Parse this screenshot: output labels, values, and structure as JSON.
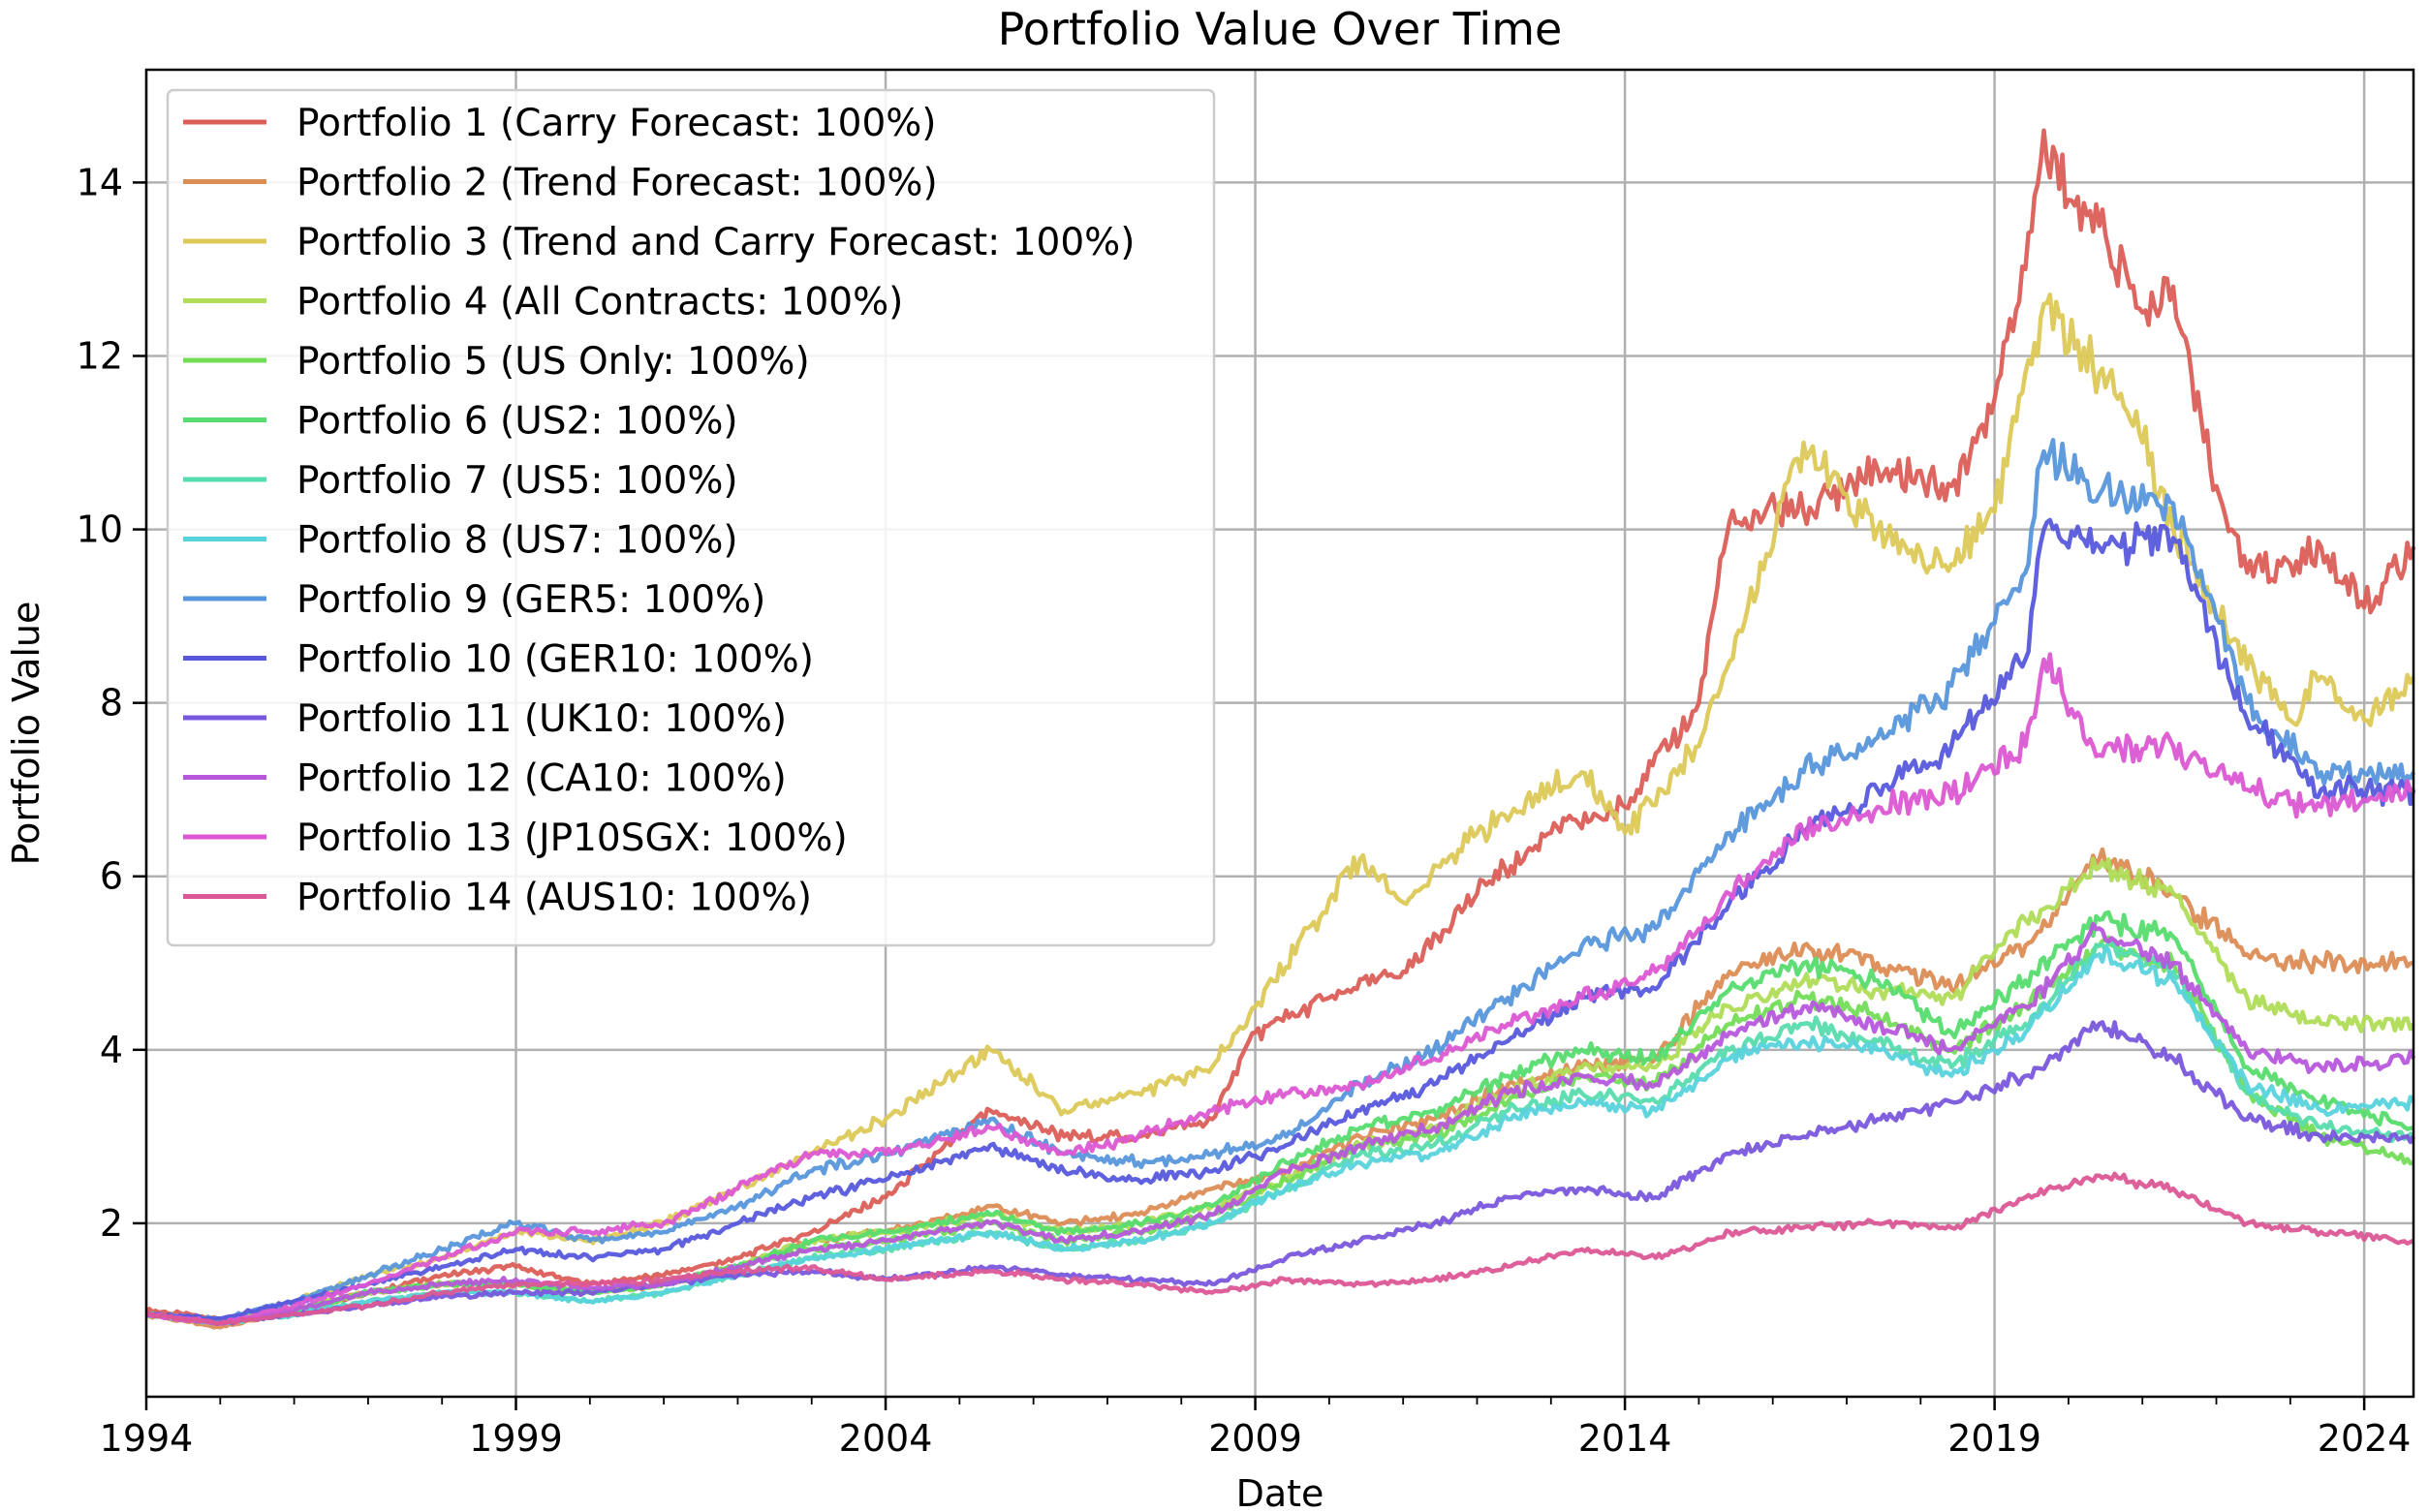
{
  "chart_data": {
    "type": "line",
    "title": "Portfolio Value Over Time",
    "xlabel": "Date",
    "ylabel": "Portfolio Value",
    "xlim": [
      "1994-01-01",
      "2024-09-01"
    ],
    "ylim": [
      0,
      15.3
    ],
    "x_ticks": [
      "1994",
      "1999",
      "2004",
      "2009",
      "2014",
      "2019",
      "2024"
    ],
    "y_ticks": [
      2,
      4,
      6,
      8,
      10,
      12,
      14
    ],
    "grid": true,
    "legend_position": "upper-left",
    "series": [
      {
        "name": "Portfolio 1 (Carry Forecast: 100%)",
        "color": "#db5f57",
        "x": [
          "1994-01",
          "1995-01",
          "1996-01",
          "1997-01",
          "1998-01",
          "1999-01",
          "2000-01",
          "2001-01",
          "2002-01",
          "2003-01",
          "2004-01",
          "2005-06",
          "2006-06",
          "2007-06",
          "2008-06",
          "2009-01",
          "2010-01",
          "2011-01",
          "2012-01",
          "2013-01",
          "2014-01",
          "2015-01",
          "2015-06",
          "2016-06",
          "2017-06",
          "2018-06",
          "2019-01",
          "2019-06",
          "2019-09",
          "2020-01",
          "2020-06",
          "2021-01",
          "2021-06",
          "2022-01",
          "2022-06",
          "2023-01",
          "2023-06",
          "2024-01",
          "2024-09"
        ],
        "y": [
          1.0,
          0.9,
          1.0,
          1.2,
          1.4,
          1.5,
          1.3,
          1.4,
          1.6,
          1.9,
          2.3,
          3.3,
          3.0,
          3.0,
          3.2,
          4.2,
          4.6,
          4.9,
          5.8,
          6.5,
          6.8,
          8.0,
          10.1,
          10.2,
          10.7,
          10.5,
          11.5,
          13.0,
          14.6,
          13.8,
          13.5,
          12.5,
          12.8,
          10.5,
          9.5,
          9.6,
          9.8,
          9.1,
          9.8
        ]
      },
      {
        "name": "Portfolio 2 (Trend Forecast: 100%)",
        "color": "#dc8d56",
        "x": [
          "1994-01",
          "1995-01",
          "1996-01",
          "1997-01",
          "1998-01",
          "1999-01",
          "2000-01",
          "2001-01",
          "2002-01",
          "2003-01",
          "2004-01",
          "2005-06",
          "2006-06",
          "2007-06",
          "2008-06",
          "2009-06",
          "2010-06",
          "2011-06",
          "2012-06",
          "2013-06",
          "2014-06",
          "2015-06",
          "2016-06",
          "2017-06",
          "2018-06",
          "2019-06",
          "2020-06",
          "2021-06",
          "2022-06",
          "2023-06",
          "2024-09"
        ],
        "y": [
          0.95,
          0.8,
          1.0,
          1.2,
          1.3,
          1.3,
          1.2,
          1.3,
          1.5,
          1.8,
          1.9,
          2.2,
          2.0,
          2.1,
          2.4,
          2.6,
          3.0,
          3.2,
          3.6,
          3.8,
          3.9,
          4.9,
          5.2,
          5.0,
          4.7,
          5.2,
          6.2,
          5.8,
          5.1,
          5.0,
          5.0
        ]
      },
      {
        "name": "Portfolio 3 (Trend and Carry Forecast: 100%)",
        "color": "#dcc957",
        "x": [
          "1994-01",
          "1995-01",
          "1996-01",
          "1997-01",
          "1998-01",
          "1999-01",
          "2000-01",
          "2001-01",
          "2002-01",
          "2003-01",
          "2004-01",
          "2005-06",
          "2006-06",
          "2007-06",
          "2008-06",
          "2009-01",
          "2010-06",
          "2011-01",
          "2012-01",
          "2013-06",
          "2014-01",
          "2015-01",
          "2016-06",
          "2017-06",
          "2018-06",
          "2019-01",
          "2019-09",
          "2020-06",
          "2021-01",
          "2021-06",
          "2022-01",
          "2023-01",
          "2023-06",
          "2024-01",
          "2024-09"
        ],
        "y": [
          0.95,
          0.85,
          1.1,
          1.4,
          1.6,
          1.9,
          1.8,
          2.0,
          2.4,
          2.8,
          3.2,
          4.0,
          3.3,
          3.5,
          3.8,
          4.5,
          6.2,
          5.7,
          6.5,
          7.2,
          6.5,
          7.5,
          11.0,
          10.0,
          9.6,
          10.2,
          12.6,
          11.8,
          11.0,
          10.0,
          9.0,
          7.8,
          8.3,
          7.8,
          8.3
        ]
      },
      {
        "name": "Portfolio 4 (All Contracts: 100%)",
        "color": "#b0dc57",
        "x": [
          "1994-01",
          "1995-01",
          "1996-01",
          "1997-01",
          "1998-01",
          "1999-01",
          "2000-01",
          "2001-01",
          "2002-01",
          "2003-01",
          "2004-01",
          "2005-06",
          "2006-06",
          "2007-06",
          "2008-06",
          "2009-06",
          "2010-06",
          "2011-06",
          "2012-06",
          "2013-06",
          "2014-06",
          "2015-06",
          "2016-06",
          "2017-06",
          "2018-06",
          "2019-06",
          "2020-06",
          "2021-06",
          "2022-06",
          "2023-06",
          "2024-09"
        ],
        "y": [
          0.95,
          0.85,
          1.0,
          1.2,
          1.3,
          1.3,
          1.2,
          1.3,
          1.5,
          1.8,
          1.9,
          2.1,
          1.9,
          2.0,
          2.2,
          2.5,
          2.9,
          3.1,
          3.5,
          3.8,
          3.8,
          4.5,
          4.8,
          4.7,
          4.6,
          5.5,
          6.1,
          5.8,
          4.6,
          4.3,
          4.3
        ]
      },
      {
        "name": "Portfolio 5 (US Only: 100%)",
        "color": "#73dc57",
        "x": [
          "1994-01",
          "1995-01",
          "1996-01",
          "1997-01",
          "1998-01",
          "1999-01",
          "2000-01",
          "2001-01",
          "2002-01",
          "2003-01",
          "2004-01",
          "2005-06",
          "2006-06",
          "2007-06",
          "2008-06",
          "2009-06",
          "2010-06",
          "2011-06",
          "2012-06",
          "2013-06",
          "2014-06",
          "2015-06",
          "2016-06",
          "2017-06",
          "2018-06",
          "2019-06",
          "2020-06",
          "2021-06",
          "2022-06",
          "2023-06",
          "2024-09"
        ],
        "y": [
          0.95,
          0.85,
          1.0,
          1.2,
          1.3,
          1.3,
          1.2,
          1.3,
          1.5,
          1.7,
          1.8,
          2.0,
          1.8,
          1.9,
          2.1,
          2.5,
          2.9,
          3.0,
          3.4,
          3.7,
          3.6,
          4.3,
          4.6,
          4.4,
          4.0,
          4.5,
          5.2,
          5.0,
          3.5,
          3.0,
          2.7
        ]
      },
      {
        "name": "Portfolio 6 (US2: 100%)",
        "color": "#57dc6f",
        "x": [
          "1994-01",
          "1995-01",
          "1996-01",
          "1997-01",
          "1998-01",
          "1999-01",
          "2000-01",
          "2001-01",
          "2002-01",
          "2003-01",
          "2004-01",
          "2005-06",
          "2006-06",
          "2007-06",
          "2008-06",
          "2009-06",
          "2010-06",
          "2011-06",
          "2012-06",
          "2013-06",
          "2014-06",
          "2015-06",
          "2016-06",
          "2017-06",
          "2018-06",
          "2019-06",
          "2020-06",
          "2021-06",
          "2022-06",
          "2023-06",
          "2024-09"
        ],
        "y": [
          0.95,
          0.85,
          1.0,
          1.2,
          1.3,
          1.3,
          1.2,
          1.3,
          1.5,
          1.8,
          1.9,
          2.1,
          1.9,
          2.0,
          2.2,
          2.7,
          3.1,
          3.3,
          3.7,
          4.0,
          3.9,
          4.7,
          5.0,
          4.8,
          4.2,
          4.8,
          5.5,
          5.3,
          3.8,
          3.4,
          3.1
        ]
      },
      {
        "name": "Portfolio 7 (US5: 100%)",
        "color": "#57dcad",
        "x": [
          "1994-01",
          "1995-01",
          "1996-01",
          "1997-01",
          "1998-01",
          "1999-01",
          "2000-01",
          "2001-01",
          "2002-01",
          "2003-01",
          "2004-01",
          "2005-06",
          "2006-06",
          "2007-06",
          "2008-06",
          "2009-06",
          "2010-06",
          "2011-06",
          "2012-06",
          "2013-06",
          "2014-06",
          "2015-06",
          "2016-06",
          "2017-06",
          "2018-06",
          "2019-06",
          "2020-06",
          "2021-06",
          "2022-06",
          "2023-06",
          "2024-09"
        ],
        "y": [
          0.95,
          0.85,
          0.95,
          1.1,
          1.2,
          1.2,
          1.1,
          1.2,
          1.4,
          1.6,
          1.7,
          1.9,
          1.7,
          1.8,
          2.0,
          2.4,
          2.8,
          2.9,
          3.3,
          3.5,
          3.4,
          4.0,
          4.3,
          4.1,
          3.8,
          4.3,
          5.2,
          4.9,
          3.5,
          3.1,
          3.0
        ]
      },
      {
        "name": "Portfolio 8 (US7: 100%)",
        "color": "#57d3dc",
        "x": [
          "1994-01",
          "1995-01",
          "1996-01",
          "1997-01",
          "1998-01",
          "1999-01",
          "2000-01",
          "2001-01",
          "2002-01",
          "2003-01",
          "2004-01",
          "2005-06",
          "2006-06",
          "2007-06",
          "2008-06",
          "2009-06",
          "2010-06",
          "2011-06",
          "2012-06",
          "2013-06",
          "2014-06",
          "2015-06",
          "2016-06",
          "2017-06",
          "2018-06",
          "2019-06",
          "2020-06",
          "2021-06",
          "2022-06",
          "2023-06",
          "2024-09"
        ],
        "y": [
          0.95,
          0.85,
          0.95,
          1.1,
          1.2,
          1.2,
          1.1,
          1.2,
          1.4,
          1.6,
          1.7,
          1.9,
          1.7,
          1.8,
          2.0,
          2.4,
          2.7,
          2.8,
          3.2,
          3.4,
          3.3,
          3.9,
          4.1,
          4.0,
          3.7,
          4.2,
          5.1,
          4.8,
          3.6,
          3.3,
          3.4
        ]
      },
      {
        "name": "Portfolio 9 (GER5: 100%)",
        "color": "#5796dc",
        "x": [
          "1994-01",
          "1995-01",
          "1996-01",
          "1997-01",
          "1998-01",
          "1999-01",
          "2000-01",
          "2001-01",
          "2002-01",
          "2003-01",
          "2004-01",
          "2005-06",
          "2006-06",
          "2007-06",
          "2008-06",
          "2009-06",
          "2010-06",
          "2011-06",
          "2012-06",
          "2013-06",
          "2014-06",
          "2015-06",
          "2016-06",
          "2017-06",
          "2018-06",
          "2019-06",
          "2019-09",
          "2020-06",
          "2021-06",
          "2022-06",
          "2023-06",
          "2024-09"
        ],
        "y": [
          0.95,
          0.9,
          1.1,
          1.4,
          1.7,
          2.0,
          1.8,
          1.9,
          2.2,
          2.6,
          2.8,
          3.2,
          2.8,
          2.7,
          2.8,
          3.0,
          3.6,
          4.0,
          4.6,
          5.2,
          5.4,
          6.5,
          7.2,
          7.6,
          8.2,
          9.5,
          10.9,
          10.4,
          10.3,
          8.0,
          7.2,
          7.2
        ]
      },
      {
        "name": "Portfolio 10 (GER10: 100%)",
        "color": "#5758dc",
        "x": [
          "1994-01",
          "1995-01",
          "1996-01",
          "1997-01",
          "1998-01",
          "1999-01",
          "2000-01",
          "2001-01",
          "2002-01",
          "2003-01",
          "2004-01",
          "2005-06",
          "2006-06",
          "2007-06",
          "2008-06",
          "2009-06",
          "2010-06",
          "2011-06",
          "2012-06",
          "2013-06",
          "2014-06",
          "2015-06",
          "2016-06",
          "2017-06",
          "2018-06",
          "2019-06",
          "2019-09",
          "2020-06",
          "2021-06",
          "2022-06",
          "2023-06",
          "2024-09"
        ],
        "y": [
          0.95,
          0.9,
          1.1,
          1.3,
          1.5,
          1.7,
          1.6,
          1.7,
          2.0,
          2.3,
          2.5,
          2.9,
          2.6,
          2.5,
          2.6,
          2.9,
          3.3,
          3.6,
          4.1,
          4.6,
          4.7,
          5.7,
          6.5,
          7.0,
          7.5,
          8.5,
          10.0,
          9.8,
          9.9,
          7.8,
          7.0,
          7.0
        ]
      },
      {
        "name": "Portfolio 11 (UK10: 100%)",
        "color": "#7957dc",
        "x": [
          "1994-01",
          "1995-01",
          "1996-01",
          "1997-01",
          "1998-01",
          "1999-01",
          "2000-01",
          "2001-01",
          "2002-01",
          "2003-01",
          "2004-01",
          "2005-06",
          "2006-06",
          "2007-06",
          "2008-06",
          "2009-06",
          "2010-06",
          "2011-06",
          "2012-06",
          "2013-06",
          "2014-06",
          "2015-06",
          "2016-06",
          "2017-06",
          "2018-06",
          "2019-06",
          "2020-06",
          "2021-06",
          "2022-06",
          "2023-06",
          "2024-09"
        ],
        "y": [
          0.95,
          0.85,
          0.95,
          1.05,
          1.15,
          1.2,
          1.2,
          1.3,
          1.4,
          1.45,
          1.35,
          1.5,
          1.4,
          1.35,
          1.3,
          1.6,
          1.8,
          2.0,
          2.3,
          2.4,
          2.3,
          2.8,
          3.0,
          3.2,
          3.4,
          3.7,
          4.3,
          3.9,
          3.2,
          3.0,
          3.0
        ]
      },
      {
        "name": "Portfolio 12 (CA10: 100%)",
        "color": "#b757dc",
        "x": [
          "1994-01",
          "1995-01",
          "1996-01",
          "1997-01",
          "1998-01",
          "1999-01",
          "2000-01",
          "2001-01",
          "2002-01",
          "2003-01",
          "2004-01",
          "2005-06",
          "2006-06",
          "2007-06",
          "2008-06",
          "2009-06",
          "2010-06",
          "2011-06",
          "2012-06",
          "2013-06",
          "2014-06",
          "2015-06",
          "2016-06",
          "2017-06",
          "2018-06",
          "2019-06",
          "2020-06",
          "2021-06",
          "2022-06",
          "2023-06",
          "2024-09"
        ],
        "y": [
          0.95,
          0.85,
          1.0,
          1.2,
          1.3,
          1.35,
          1.25,
          1.3,
          1.5,
          1.7,
          1.8,
          2.0,
          1.8,
          1.9,
          2.1,
          2.6,
          2.9,
          3.1,
          3.5,
          3.7,
          3.6,
          4.2,
          4.5,
          4.3,
          4.0,
          4.5,
          5.4,
          5.0,
          4.0,
          3.8,
          3.9
        ]
      },
      {
        "name": "Portfolio 13 (JP10SGX: 100%)",
        "color": "#dc57d3",
        "x": [
          "1994-01",
          "1995-01",
          "1996-01",
          "1997-01",
          "1998-01",
          "1999-01",
          "2000-01",
          "2001-01",
          "2002-01",
          "2003-01",
          "2004-01",
          "2005-06",
          "2006-06",
          "2007-06",
          "2008-06",
          "2009-06",
          "2010-06",
          "2011-06",
          "2012-06",
          "2013-06",
          "2014-06",
          "2015-06",
          "2016-06",
          "2017-06",
          "2018-06",
          "2019-06",
          "2019-09",
          "2020-06",
          "2021-06",
          "2022-06",
          "2023-06",
          "2024-09"
        ],
        "y": [
          0.95,
          0.85,
          1.05,
          1.3,
          1.6,
          1.9,
          1.9,
          2.0,
          2.4,
          2.8,
          2.8,
          3.1,
          2.8,
          3.0,
          3.3,
          3.5,
          3.6,
          3.9,
          4.3,
          4.6,
          4.9,
          5.8,
          6.5,
          6.8,
          6.9,
          7.5,
          8.5,
          7.4,
          7.5,
          7.0,
          6.8,
          7.0
        ]
      },
      {
        "name": "Portfolio 14 (AUS10: 100%)",
        "color": "#dc5795",
        "x": [
          "1994-01",
          "1995-01",
          "1996-01",
          "1997-01",
          "1998-01",
          "1999-01",
          "2000-01",
          "2001-01",
          "2002-01",
          "2003-01",
          "2004-01",
          "2005-06",
          "2006-06",
          "2007-06",
          "2008-06",
          "2009-06",
          "2010-06",
          "2011-06",
          "2012-06",
          "2013-06",
          "2014-06",
          "2015-06",
          "2016-06",
          "2017-06",
          "2018-06",
          "2019-06",
          "2020-06",
          "2021-06",
          "2022-06",
          "2023-06",
          "2024-09"
        ],
        "y": [
          0.95,
          0.85,
          0.95,
          1.05,
          1.2,
          1.3,
          1.3,
          1.35,
          1.45,
          1.5,
          1.35,
          1.45,
          1.35,
          1.3,
          1.2,
          1.35,
          1.3,
          1.35,
          1.5,
          1.7,
          1.6,
          1.9,
          1.95,
          2.0,
          1.95,
          2.3,
          2.55,
          2.4,
          2.0,
          1.9,
          1.8
        ]
      }
    ]
  }
}
